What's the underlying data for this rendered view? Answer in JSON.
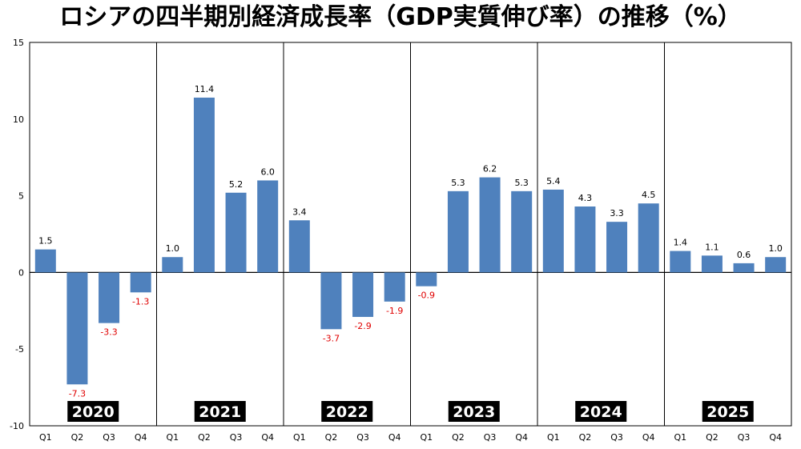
{
  "chart_data": {
    "type": "bar",
    "title": "ロシアの四半期別経済成長率（GDP実質伸び率）の推移（%）",
    "xlabel": "",
    "ylabel": "",
    "ylim": [
      -10,
      15
    ],
    "yticks": [
      15,
      10,
      5,
      0,
      -5,
      -10
    ],
    "grid": false,
    "colors": {
      "bar": "#4F81BD",
      "positive_label": "#000000",
      "negative_label": "#E00000",
      "year_label_bg": "#000000",
      "year_label_text": "#FFFFFF"
    },
    "years": [
      {
        "year": "2020",
        "quarters": [
          "Q1",
          "Q2",
          "Q3",
          "Q4"
        ],
        "values": [
          1.5,
          -7.3,
          -3.3,
          -1.3
        ],
        "labels": [
          "1.5",
          "-7.3",
          "-3.3",
          "-1.3"
        ]
      },
      {
        "year": "2021",
        "quarters": [
          "Q1",
          "Q2",
          "Q3",
          "Q4"
        ],
        "values": [
          1.0,
          11.4,
          5.2,
          6.0
        ],
        "labels": [
          "1.0",
          "11.4",
          "5.2",
          "6.0"
        ]
      },
      {
        "year": "2022",
        "quarters": [
          "Q1",
          "Q2",
          "Q3",
          "Q4"
        ],
        "values": [
          3.4,
          -3.7,
          -2.9,
          -1.9
        ],
        "labels": [
          "3.4",
          "-3.7",
          "-2.9",
          "-1.9"
        ]
      },
      {
        "year": "2023",
        "quarters": [
          "Q1",
          "Q2",
          "Q3",
          "Q4"
        ],
        "values": [
          -0.9,
          5.3,
          6.2,
          5.3
        ],
        "labels": [
          "-0.9",
          "5.3",
          "6.2",
          "5.3"
        ]
      },
      {
        "year": "2024",
        "quarters": [
          "Q1",
          "Q2",
          "Q3",
          "Q4"
        ],
        "values": [
          5.4,
          4.3,
          3.3,
          4.5
        ],
        "labels": [
          "5.4",
          "4.3",
          "3.3",
          "4.5"
        ]
      },
      {
        "year": "2025",
        "quarters": [
          "Q1",
          "Q2",
          "Q3",
          "Q4"
        ],
        "values": [
          1.4,
          1.1,
          0.6,
          1.0
        ],
        "labels": [
          "1.4",
          "1.1",
          "0.6",
          "1.0"
        ]
      }
    ]
  }
}
